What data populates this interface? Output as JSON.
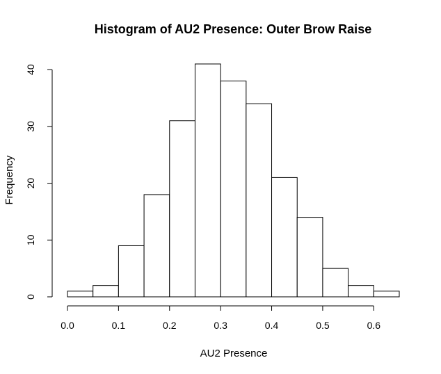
{
  "chart_data": {
    "type": "bar",
    "title": "Histogram of AU2 Presence: Outer Brow Raise",
    "xlabel": "AU2 Presence",
    "ylabel": "Frequency",
    "bins": [
      {
        "x0": 0.0,
        "x1": 0.05,
        "count": 1
      },
      {
        "x0": 0.05,
        "x1": 0.1,
        "count": 2
      },
      {
        "x0": 0.1,
        "x1": 0.15,
        "count": 9
      },
      {
        "x0": 0.15,
        "x1": 0.2,
        "count": 18
      },
      {
        "x0": 0.2,
        "x1": 0.25,
        "count": 31
      },
      {
        "x0": 0.25,
        "x1": 0.3,
        "count": 41
      },
      {
        "x0": 0.3,
        "x1": 0.35,
        "count": 38
      },
      {
        "x0": 0.35,
        "x1": 0.4,
        "count": 34
      },
      {
        "x0": 0.4,
        "x1": 0.45,
        "count": 21
      },
      {
        "x0": 0.45,
        "x1": 0.5,
        "count": 14
      },
      {
        "x0": 0.5,
        "x1": 0.55,
        "count": 5
      },
      {
        "x0": 0.55,
        "x1": 0.6,
        "count": 2
      },
      {
        "x0": 0.6,
        "x1": 0.65,
        "count": 1
      }
    ],
    "xticks": [
      {
        "value": 0.0,
        "label": "0.0"
      },
      {
        "value": 0.1,
        "label": "0.1"
      },
      {
        "value": 0.2,
        "label": "0.2"
      },
      {
        "value": 0.3,
        "label": "0.3"
      },
      {
        "value": 0.4,
        "label": "0.4"
      },
      {
        "value": 0.5,
        "label": "0.5"
      },
      {
        "value": 0.6,
        "label": "0.6"
      }
    ],
    "yticks": [
      {
        "value": 0,
        "label": "0"
      },
      {
        "value": 10,
        "label": "10"
      },
      {
        "value": 20,
        "label": "20"
      },
      {
        "value": 30,
        "label": "30"
      },
      {
        "value": 40,
        "label": "40"
      }
    ],
    "xlim": [
      0.0,
      0.65
    ],
    "ylim": [
      0,
      41
    ],
    "grid": false,
    "bar_fill": "#ffffff",
    "bar_stroke": "#000000"
  }
}
